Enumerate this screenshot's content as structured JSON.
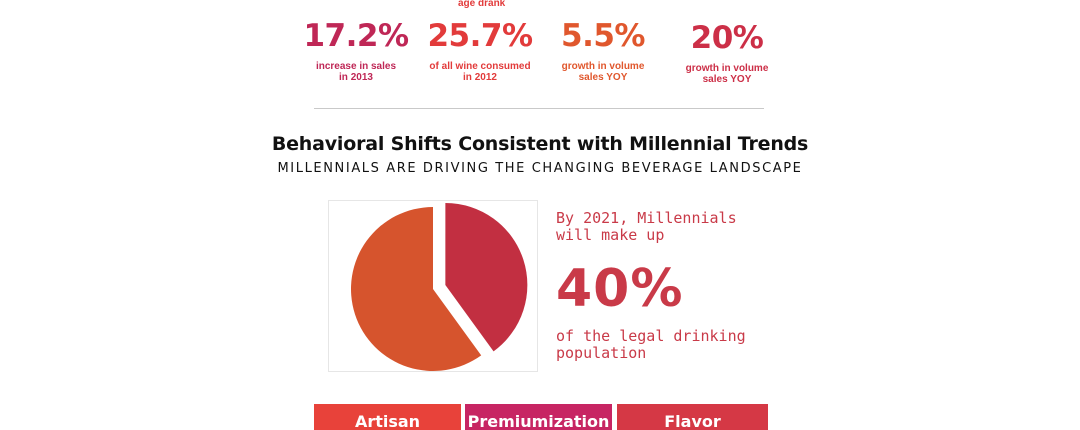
{
  "stats": [
    {
      "top_label": "",
      "value": "17.2%",
      "label_line1": "increase in sales",
      "label_line2": "in 2013",
      "color": "#bf2756"
    },
    {
      "top_label": "age drank",
      "value": "25.7%",
      "label_line1": "of all wine consumed",
      "label_line2": "in 2012",
      "color": "#e23b3b"
    },
    {
      "top_label": "",
      "value": "5.5%",
      "label_line1": "growth in volume",
      "label_line2": "sales YOY",
      "color": "#e0572d"
    },
    {
      "top_label": "",
      "value": "20%",
      "label_line1": "growth in volume",
      "label_line2": "sales YOY",
      "color": "#cc2f47"
    }
  ],
  "section": {
    "title": "Behavioral Shifts Consistent with Millennial Trends",
    "subtitle": "MILLENNIALS ARE DRIVING THE CHANGING BEVERAGE LANDSCAPE"
  },
  "callout": {
    "line1": "By 2021, Millennials",
    "line2": "will make up",
    "big_value": "40%",
    "line3": "of the legal drinking",
    "line4": "population"
  },
  "chart_data": {
    "type": "pie",
    "title": "",
    "slices": [
      {
        "label": "Millennials",
        "value": 40,
        "color": "#c22f41",
        "exploded": true
      },
      {
        "label": "",
        "value": 60,
        "color": "#d6542d",
        "exploded": false
      }
    ]
  },
  "tiles": [
    {
      "label": "Artisan",
      "color": "#e8423a"
    },
    {
      "label": "Premiumization",
      "color": "#c72563"
    },
    {
      "label": "Flavor Innovation",
      "color": "#d53845"
    }
  ]
}
